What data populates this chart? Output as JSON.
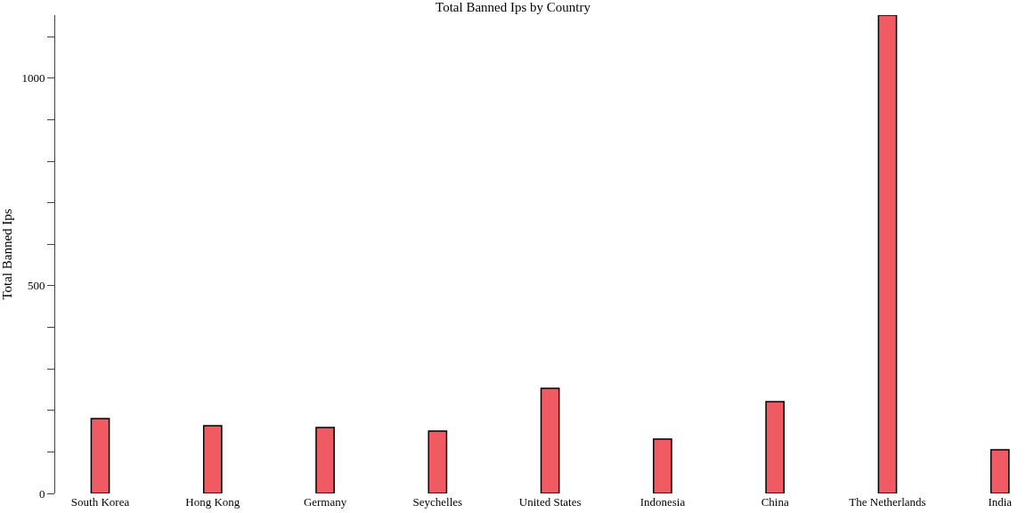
{
  "chart_data": {
    "type": "bar",
    "title": "Total Banned Ips by Country",
    "ylabel": "Total Banned Ips",
    "categories": [
      "South Korea",
      "Hong Kong",
      "Germany",
      "Seychelles",
      "United States",
      "Indonesia",
      "China",
      "The Netherlands",
      "India"
    ],
    "values": [
      180,
      163,
      159,
      150,
      253,
      131,
      221,
      1152,
      105
    ],
    "color": "#f05a62",
    "ylim": [
      0,
      1152
    ],
    "yticks": [
      0,
      {
        "value": 100,
        "label": null
      },
      {
        "value": 200,
        "label": null
      },
      {
        "value": 300,
        "label": null
      },
      {
        "value": 400,
        "label": null
      },
      500,
      {
        "value": 600,
        "label": null
      },
      {
        "value": 700,
        "label": null
      },
      {
        "value": 800,
        "label": null
      },
      {
        "value": 900,
        "label": null
      },
      1000,
      {
        "value": 1100,
        "label": null
      }
    ],
    "legend": false
  }
}
